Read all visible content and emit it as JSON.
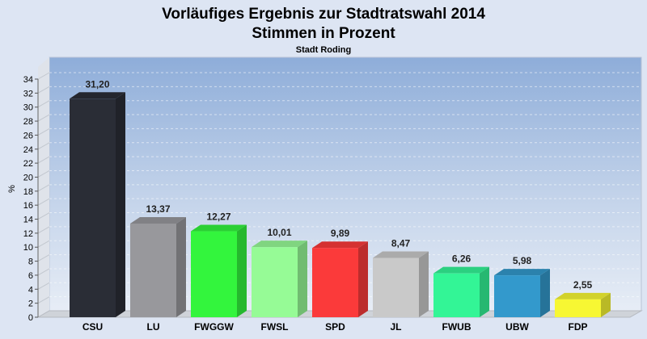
{
  "chart_data": {
    "type": "bar",
    "title": "Vorläufiges Ergebnis zur Stadtratswahl 2014",
    "subtitle": "Stimmen in Prozent",
    "subsubtitle": "Stadt Roding",
    "xlabel": "",
    "ylabel": "%",
    "ylim": [
      0,
      34
    ],
    "yticks": [
      "0",
      "2",
      "4",
      "6",
      "8",
      "10",
      "12",
      "14",
      "16",
      "18",
      "20",
      "22",
      "24",
      "26",
      "28",
      "30",
      "32",
      "34"
    ],
    "grid": true,
    "legend": "none",
    "categories": [
      "CSU",
      "LU",
      "FWGGW",
      "FWSL",
      "SPD",
      "JL",
      "FWUB",
      "UBW",
      "FDP"
    ],
    "values": [
      31.2,
      13.37,
      12.27,
      10.01,
      9.89,
      8.47,
      6.26,
      5.98,
      2.55
    ],
    "value_labels": [
      "31,20",
      "13,37",
      "12,27",
      "10,01",
      "9,89",
      "8,47",
      "6,26",
      "5,98",
      "2,55"
    ],
    "colors": [
      "#2a2d36",
      "#98989c",
      "#33f53d",
      "#96fb96",
      "#fb3a3a",
      "#c9c9c9",
      "#33f596",
      "#3399cc",
      "#f7f733"
    ]
  }
}
